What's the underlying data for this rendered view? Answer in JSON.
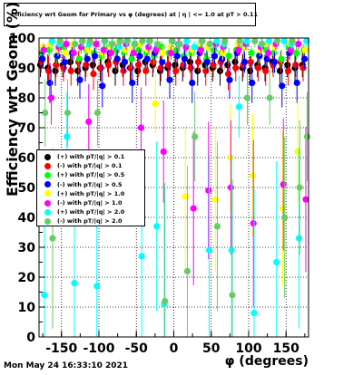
{
  "title": "Efficiency wrt Geom for Primary vs φ (degrees) at | η | <= 1.0 at pT > 0.11",
  "timestamp": "Mon May 24 16:33:10 2021",
  "chart_data": {
    "type": "scatter",
    "xlabel": "φ (degrees)",
    "ylabel": "Efficiency wrt Geom (%)",
    "xlim": [
      -180,
      180
    ],
    "ylim": [
      0,
      100
    ],
    "grid": true,
    "legend_position": "left-middle",
    "xticks": [
      -150,
      -100,
      -50,
      0,
      50,
      100,
      150
    ],
    "yticks": [
      0,
      10,
      20,
      30,
      40,
      50,
      60,
      70,
      80,
      90,
      100
    ],
    "series": [
      {
        "name": "(+) with pT/|q| > 0.1",
        "color": "#000000",
        "x": [
          -175,
          -165,
          -155,
          -145,
          -135,
          -125,
          -115,
          -105,
          -95,
          -85,
          -75,
          -65,
          -55,
          -45,
          -35,
          -25,
          -15,
          -5,
          5,
          15,
          25,
          35,
          45,
          55,
          65,
          75,
          85,
          95,
          105,
          115,
          125,
          135,
          145,
          155,
          165,
          175
        ],
        "y": [
          91,
          90,
          89,
          91,
          92,
          89,
          90,
          91,
          90,
          92,
          89,
          91,
          90,
          89,
          92,
          91,
          89,
          90,
          91,
          90,
          92,
          89,
          91,
          90,
          89,
          91,
          92,
          90,
          89,
          91,
          90,
          92,
          89,
          91,
          90,
          91
        ]
      },
      {
        "name": "(-) with pT/|q| > 0.1",
        "color": "#ff0000",
        "x": [
          -175,
          -165,
          -155,
          -145,
          -135,
          -125,
          -115,
          -105,
          -95,
          -85,
          -75,
          -65,
          -55,
          -45,
          -35,
          -25,
          -15,
          -5,
          5,
          15,
          25,
          35,
          45,
          55,
          65,
          75,
          85,
          95,
          105,
          115,
          125,
          135,
          145,
          155,
          165,
          175
        ],
        "y": [
          92,
          89,
          91,
          90,
          89,
          92,
          91,
          88,
          90,
          91,
          92,
          89,
          90,
          91,
          89,
          92,
          90,
          91,
          89,
          91,
          90,
          92,
          89,
          91,
          92,
          88,
          90,
          91,
          92,
          90,
          89,
          91,
          92,
          89,
          91,
          90
        ]
      },
      {
        "name": "(+) with pT/|q| > 0.5",
        "color": "#00ff00",
        "x": [
          -175,
          -165,
          -155,
          -145,
          -135,
          -125,
          -115,
          -105,
          -95,
          -85,
          -75,
          -65,
          -55,
          -45,
          -35,
          -25,
          -15,
          -5,
          5,
          15,
          25,
          35,
          45,
          55,
          65,
          75,
          85,
          95,
          105,
          115,
          125,
          135,
          145,
          155,
          165,
          175
        ],
        "y": [
          95,
          96,
          94,
          97,
          95,
          93,
          96,
          95,
          94,
          97,
          96,
          95,
          93,
          96,
          95,
          94,
          97,
          95,
          96,
          94,
          95,
          97,
          93,
          96,
          95,
          94,
          96,
          97,
          95,
          94,
          96,
          95,
          93,
          97,
          95,
          96
        ]
      },
      {
        "name": "(-) with pT/|q| > 0.5",
        "color": "#0000ff",
        "x": [
          -175,
          -165,
          -155,
          -145,
          -135,
          -125,
          -115,
          -105,
          -95,
          -85,
          -75,
          -65,
          -55,
          -45,
          -35,
          -25,
          -15,
          -5,
          5,
          15,
          25,
          35,
          45,
          55,
          65,
          75,
          85,
          95,
          105,
          115,
          125,
          135,
          145,
          155,
          165,
          175
        ],
        "y": [
          93,
          85,
          94,
          92,
          95,
          86,
          93,
          94,
          84,
          95,
          93,
          92,
          85,
          94,
          93,
          95,
          92,
          86,
          94,
          93,
          85,
          95,
          92,
          94,
          93,
          86,
          95,
          92,
          85,
          94,
          93,
          92,
          84,
          95,
          85,
          93
        ]
      },
      {
        "name": "(+) with pT/|q| > 1.0",
        "color": "#ffff00",
        "x": [
          -175,
          -165,
          -155,
          -145,
          -135,
          -125,
          -115,
          -105,
          -95,
          -85,
          -75,
          -65,
          -55,
          -45,
          -35,
          -25,
          -15,
          -5,
          5,
          15,
          25,
          35,
          45,
          55,
          65,
          75,
          85,
          95,
          105,
          115,
          125,
          135,
          145,
          155,
          165,
          175
        ],
        "y": [
          97,
          98,
          96,
          95,
          98,
          97,
          96,
          98,
          95,
          97,
          98,
          96,
          97,
          98,
          96,
          78,
          95,
          97,
          98,
          47,
          96,
          98,
          97,
          46,
          95,
          60,
          98,
          97,
          54,
          96,
          98,
          97,
          43,
          98,
          62,
          96
        ]
      },
      {
        "name": "(-) with pT/|q| > 1.0",
        "color": "#ff00ff",
        "x": [
          -175,
          -165,
          -155,
          -145,
          -135,
          -125,
          -115,
          -105,
          -95,
          -85,
          -75,
          -65,
          -55,
          -45,
          -35,
          -25,
          -15,
          -5,
          5,
          15,
          25,
          35,
          45,
          55,
          65,
          75,
          85,
          95,
          105,
          115,
          125,
          135,
          145,
          155,
          165,
          175
        ],
        "y": [
          96,
          80,
          97,
          98,
          95,
          97,
          72,
          98,
          96,
          95,
          97,
          98,
          95,
          70,
          97,
          96,
          62,
          95,
          98,
          97,
          43,
          96,
          49,
          98,
          97,
          50,
          96,
          98,
          38,
          97,
          95,
          98,
          51,
          96,
          98,
          46
        ]
      },
      {
        "name": "(+) with pT/|q| > 2.0",
        "color": "#00ffff",
        "x": [
          -175,
          -165,
          -155,
          -145,
          -135,
          -125,
          -115,
          -105,
          -95,
          -85,
          -75,
          -65,
          -55,
          -45,
          -35,
          -25,
          -15,
          -5,
          5,
          15,
          25,
          35,
          45,
          55,
          65,
          75,
          85,
          95,
          105,
          115,
          125,
          135,
          145,
          155,
          165,
          175
        ],
        "y": [
          14,
          99,
          98,
          67,
          18,
          99,
          98,
          17,
          99,
          98,
          97,
          99,
          98,
          27,
          99,
          37,
          11,
          99,
          98,
          99,
          97,
          99,
          29,
          99,
          98,
          29,
          77,
          99,
          8,
          98,
          99,
          25,
          99,
          98,
          33,
          99
        ]
      },
      {
        "name": "(-) with pT/|q| > 2.0",
        "color": "#66cc66",
        "x": [
          -175,
          -165,
          -155,
          -145,
          -135,
          -125,
          -115,
          -105,
          -95,
          -85,
          -75,
          -65,
          -55,
          -45,
          -35,
          -25,
          -15,
          -5,
          5,
          15,
          25,
          35,
          45,
          55,
          65,
          75,
          85,
          95,
          105,
          115,
          125,
          135,
          145,
          155,
          165,
          175
        ],
        "y": [
          75,
          33,
          99,
          75,
          98,
          99,
          99,
          75,
          99,
          98,
          99,
          99,
          98,
          99,
          99,
          98,
          12,
          99,
          98,
          22,
          67,
          99,
          98,
          37,
          99,
          14,
          99,
          80,
          99,
          98,
          80,
          99,
          40,
          99,
          50,
          67
        ]
      }
    ]
  }
}
